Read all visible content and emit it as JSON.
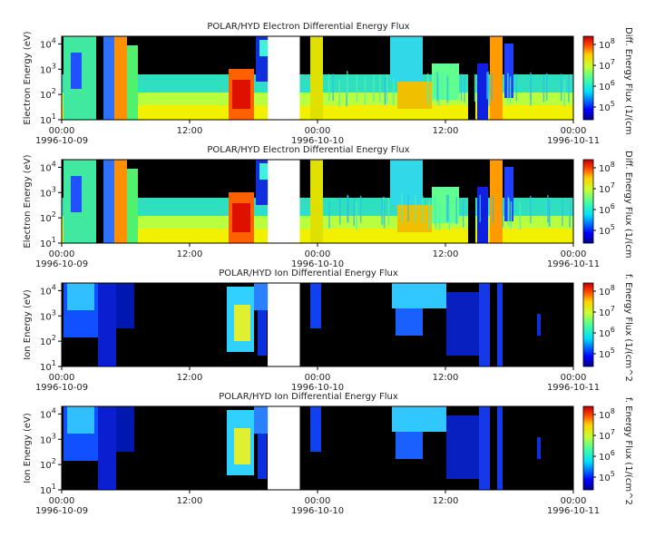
{
  "chart_data": [
    {
      "type": "heatmap",
      "title": "POLAR/HYD  Electron Differential Energy Flux",
      "ylabel": "Electron Energy (eV)",
      "yscale": "log",
      "ylim": [
        10,
        20000
      ],
      "y_ticks": [
        {
          "base": "10",
          "exp": "1"
        },
        {
          "base": "10",
          "exp": "2"
        },
        {
          "base": "10",
          "exp": "3"
        },
        {
          "base": "10",
          "exp": "4"
        }
      ],
      "xlim": [
        "1996-10-09T00:00",
        "1996-10-11T00:00"
      ],
      "x_ticks": [
        {
          "time": "00:00",
          "date": "1996-10-09"
        },
        {
          "time": "12:00",
          "date": ""
        },
        {
          "time": "00:00",
          "date": "1996-10-10"
        },
        {
          "time": "12:00",
          "date": ""
        },
        {
          "time": "00:00",
          "date": "1996-10-11"
        }
      ],
      "data_gap": [
        "1996-10-09T19:20",
        "1996-10-09T22:20"
      ],
      "colorbar": {
        "label": "Diff. Energy Flux (1/(cm",
        "scale": "log",
        "ticks": [
          {
            "base": "10",
            "exp": "5"
          },
          {
            "base": "10",
            "exp": "6"
          },
          {
            "base": "10",
            "exp": "7"
          },
          {
            "base": "10",
            "exp": "8"
          }
        ]
      }
    },
    {
      "type": "heatmap",
      "title": "POLAR/HYD  Electron Differential Energy Flux",
      "ylabel": "Electron Energy (eV)",
      "yscale": "log",
      "ylim": [
        10,
        20000
      ],
      "y_ticks": [
        {
          "base": "10",
          "exp": "1"
        },
        {
          "base": "10",
          "exp": "2"
        },
        {
          "base": "10",
          "exp": "3"
        },
        {
          "base": "10",
          "exp": "4"
        }
      ],
      "xlim": [
        "1996-10-09T00:00",
        "1996-10-11T00:00"
      ],
      "x_ticks": [
        {
          "time": "00:00",
          "date": "1996-10-09"
        },
        {
          "time": "12:00",
          "date": ""
        },
        {
          "time": "00:00",
          "date": "1996-10-10"
        },
        {
          "time": "12:00",
          "date": ""
        },
        {
          "time": "00:00",
          "date": "1996-10-11"
        }
      ],
      "data_gap": [
        "1996-10-09T19:20",
        "1996-10-09T22:20"
      ],
      "colorbar": {
        "label": "Diff. Energy Flux (1/(cm",
        "scale": "log",
        "ticks": [
          {
            "base": "10",
            "exp": "5"
          },
          {
            "base": "10",
            "exp": "6"
          },
          {
            "base": "10",
            "exp": "7"
          },
          {
            "base": "10",
            "exp": "8"
          }
        ]
      }
    },
    {
      "type": "heatmap",
      "title": "POLAR/HYD  Ion Differential Energy Flux",
      "ylabel": "Ion Energy (eV)",
      "yscale": "log",
      "ylim": [
        10,
        20000
      ],
      "y_ticks": [
        {
          "base": "10",
          "exp": "1"
        },
        {
          "base": "10",
          "exp": "2"
        },
        {
          "base": "10",
          "exp": "3"
        },
        {
          "base": "10",
          "exp": "4"
        }
      ],
      "xlim": [
        "1996-10-09T00:00",
        "1996-10-11T00:00"
      ],
      "x_ticks": [
        {
          "time": "00:00",
          "date": "1996-10-09"
        },
        {
          "time": "12:00",
          "date": ""
        },
        {
          "time": "00:00",
          "date": "1996-10-10"
        },
        {
          "time": "12:00",
          "date": ""
        },
        {
          "time": "00:00",
          "date": "1996-10-11"
        }
      ],
      "data_gap": [
        "1996-10-09T19:20",
        "1996-10-09T22:20"
      ],
      "colorbar": {
        "label": "f. Energy Flux (1/(cm^2",
        "scale": "log",
        "ticks": [
          {
            "base": "10",
            "exp": "5"
          },
          {
            "base": "10",
            "exp": "6"
          },
          {
            "base": "10",
            "exp": "7"
          },
          {
            "base": "10",
            "exp": "8"
          }
        ]
      }
    },
    {
      "type": "heatmap",
      "title": "POLAR/HYD  Ion Differential Energy Flux",
      "ylabel": "Ion Energy (eV)",
      "yscale": "log",
      "ylim": [
        10,
        20000
      ],
      "y_ticks": [
        {
          "base": "10",
          "exp": "1"
        },
        {
          "base": "10",
          "exp": "2"
        },
        {
          "base": "10",
          "exp": "3"
        },
        {
          "base": "10",
          "exp": "4"
        }
      ],
      "xlim": [
        "1996-10-09T00:00",
        "1996-10-11T00:00"
      ],
      "x_ticks": [
        {
          "time": "00:00",
          "date": "1996-10-09"
        },
        {
          "time": "12:00",
          "date": ""
        },
        {
          "time": "00:00",
          "date": "1996-10-10"
        },
        {
          "time": "12:00",
          "date": ""
        },
        {
          "time": "00:00",
          "date": "1996-10-11"
        }
      ],
      "data_gap": [
        "1996-10-09T19:20",
        "1996-10-09T22:20"
      ],
      "colorbar": {
        "label": "f. Energy Flux (1/(cm^2",
        "scale": "log",
        "ticks": [
          {
            "base": "10",
            "exp": "5"
          },
          {
            "base": "10",
            "exp": "6"
          },
          {
            "base": "10",
            "exp": "7"
          },
          {
            "base": "10",
            "exp": "8"
          }
        ]
      }
    }
  ]
}
